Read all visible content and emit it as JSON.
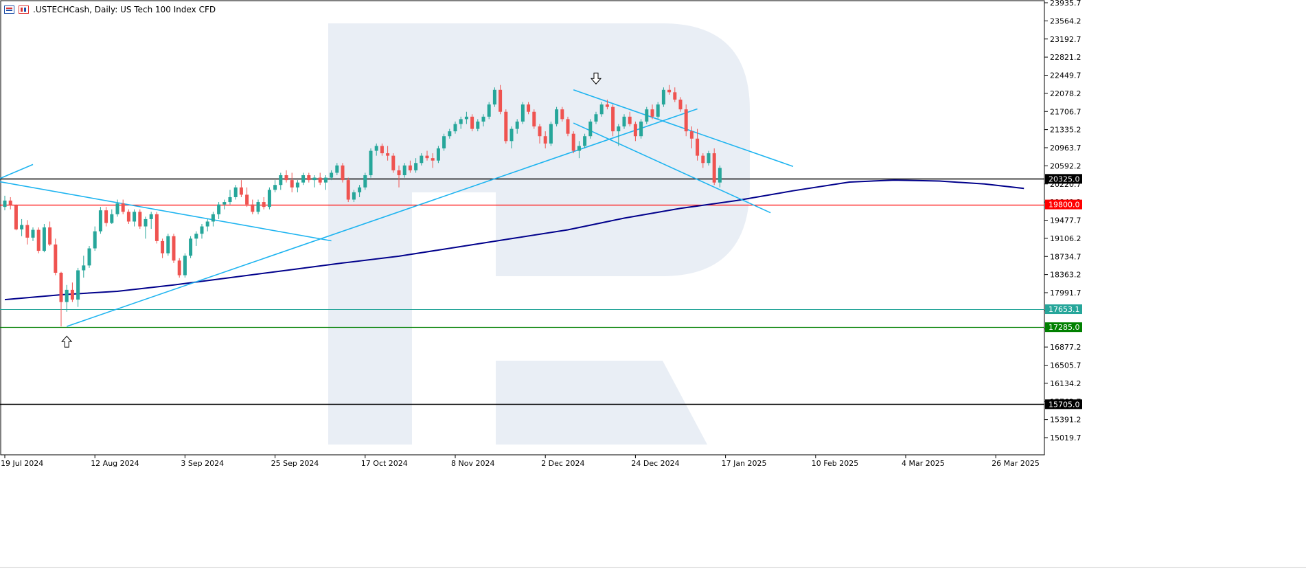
{
  "header": {
    "symbol": ".USTECHCash",
    "timeframe": "Daily",
    "description": "US Tech 100 Index CFD",
    "title": ".USTECHCash, Daily:  US Tech 100 Index CFD"
  },
  "colors": {
    "background": "#ffffff",
    "bull": "#26a69a",
    "bear": "#ef5350",
    "ma": "#00008b",
    "trendline": "#1eb4f0",
    "resistance_black": "#000000",
    "red_level": "#ff0000",
    "green_level": "#008000",
    "current_price": "#26a69a",
    "watermark": "#e9eef5"
  },
  "chart_data": {
    "type": "candlestick",
    "title": ".USTECHCash, Daily:  US Tech 100 Index CFD",
    "xlabel": "",
    "ylabel": "",
    "ylim": [
      14750,
      23950
    ],
    "y_ticks": [
      "23935.7",
      "23564.2",
      "23192.7",
      "22821.2",
      "22449.7",
      "22078.2",
      "21706.7",
      "21335.2",
      "20963.7",
      "20592.2",
      "20220.7",
      "19849.2",
      "19477.7",
      "19106.2",
      "18734.7",
      "18363.2",
      "17991.7",
      "17620.2",
      "17248.7",
      "16877.2",
      "16505.7",
      "16134.2",
      "15762.7",
      "15391.2",
      "15019.7"
    ],
    "x_ticks": [
      "19 Jul 2024",
      "12 Aug 2024",
      "3 Sep 2024",
      "25 Sep 2024",
      "17 Oct 2024",
      "8 Nov 2024",
      "2 Dec 2024",
      "24 Dec 2024",
      "17 Jan 2025",
      "10 Feb 2025",
      "4 Mar 2025",
      "26 Mar 2025"
    ],
    "x_tick_index": [
      0,
      16,
      32,
      48,
      64,
      80,
      96,
      112,
      128,
      144,
      160,
      176
    ],
    "levels": [
      {
        "value": 20325.0,
        "label": "20325.0",
        "color": "#000000",
        "kind": "black"
      },
      {
        "value": 19800.0,
        "label": "19800.0",
        "color": "#ff0000",
        "kind": "red"
      },
      {
        "value": 17653.1,
        "label": "17653.1",
        "color": "#26a69a",
        "kind": "current"
      },
      {
        "value": 17285.0,
        "label": "17285.0",
        "color": "#008000",
        "kind": "green"
      },
      {
        "value": 15705.0,
        "label": "15705.0",
        "color": "#000000",
        "kind": "black"
      }
    ],
    "moving_average": [
      [
        0,
        17850
      ],
      [
        10,
        17950
      ],
      [
        20,
        18020
      ],
      [
        30,
        18150
      ],
      [
        40,
        18300
      ],
      [
        50,
        18450
      ],
      [
        60,
        18600
      ],
      [
        70,
        18740
      ],
      [
        80,
        18920
      ],
      [
        90,
        19100
      ],
      [
        100,
        19280
      ],
      [
        110,
        19520
      ],
      [
        120,
        19720
      ],
      [
        130,
        19880
      ],
      [
        140,
        20080
      ],
      [
        150,
        20260
      ],
      [
        158,
        20300
      ],
      [
        166,
        20280
      ],
      [
        174,
        20220
      ],
      [
        181,
        20130
      ]
    ],
    "trendlines": [
      {
        "p1": [
          -4,
          20330
        ],
        "p2": [
          58,
          19055
        ]
      },
      {
        "p1": [
          -4,
          20180
        ],
        "p2": [
          5,
          20620
        ]
      },
      {
        "p1": [
          11,
          17300
        ],
        "p2": [
          123,
          21760
        ]
      },
      {
        "p1": [
          101,
          22150
        ],
        "p2": [
          140,
          20580
        ]
      },
      {
        "p1": [
          101,
          21470
        ],
        "p2": [
          136,
          19630
        ]
      }
    ],
    "arrows": [
      {
        "index": 11,
        "value": 17100,
        "direction": "up"
      },
      {
        "index": 105,
        "value": 22270,
        "direction": "down"
      }
    ],
    "candles": [
      [
        0,
        19750,
        19980,
        19680,
        19880
      ],
      [
        1,
        19880,
        19950,
        19700,
        19790
      ],
      [
        2,
        19790,
        19800,
        19270,
        19290
      ],
      [
        3,
        19290,
        19500,
        19150,
        19380
      ],
      [
        4,
        19380,
        19480,
        18980,
        19120
      ],
      [
        5,
        19120,
        19330,
        19050,
        19280
      ],
      [
        6,
        19280,
        19330,
        18800,
        18850
      ],
      [
        7,
        18850,
        19400,
        18820,
        19330
      ],
      [
        8,
        19330,
        19450,
        18950,
        18980
      ],
      [
        9,
        18980,
        19100,
        18350,
        18400
      ],
      [
        10,
        18400,
        18420,
        17300,
        17800
      ],
      [
        11,
        17800,
        18150,
        17600,
        18050
      ],
      [
        12,
        18050,
        18200,
        17800,
        17850
      ],
      [
        13,
        17850,
        18500,
        17700,
        18450
      ],
      [
        14,
        18450,
        18750,
        18300,
        18550
      ],
      [
        15,
        18550,
        18950,
        18500,
        18900
      ],
      [
        16,
        18900,
        19350,
        18850,
        19250
      ],
      [
        17,
        19250,
        19750,
        19200,
        19680
      ],
      [
        18,
        19680,
        19750,
        19350,
        19420
      ],
      [
        19,
        19420,
        19700,
        19400,
        19600
      ],
      [
        20,
        19600,
        19900,
        19550,
        19820
      ],
      [
        21,
        19820,
        19900,
        19600,
        19650
      ],
      [
        22,
        19650,
        19700,
        19400,
        19450
      ],
      [
        23,
        19450,
        19700,
        19350,
        19650
      ],
      [
        24,
        19650,
        19700,
        19300,
        19350
      ],
      [
        25,
        19350,
        19550,
        19100,
        19500
      ],
      [
        26,
        19500,
        19650,
        19300,
        19600
      ],
      [
        27,
        19600,
        19650,
        19000,
        19050
      ],
      [
        28,
        19050,
        19100,
        18700,
        18800
      ],
      [
        29,
        18800,
        19200,
        18750,
        19150
      ],
      [
        30,
        19150,
        19200,
        18600,
        18650
      ],
      [
        31,
        18650,
        18700,
        18300,
        18350
      ],
      [
        32,
        18350,
        18800,
        18300,
        18750
      ],
      [
        33,
        18750,
        19150,
        18700,
        19100
      ],
      [
        34,
        19100,
        19250,
        18950,
        19200
      ],
      [
        35,
        19200,
        19400,
        19100,
        19350
      ],
      [
        36,
        19350,
        19500,
        19250,
        19450
      ],
      [
        37,
        19450,
        19650,
        19350,
        19600
      ],
      [
        38,
        19600,
        19850,
        19500,
        19800
      ],
      [
        39,
        19800,
        19900,
        19700,
        19850
      ],
      [
        40,
        19850,
        20100,
        19800,
        19950
      ],
      [
        41,
        19950,
        20200,
        19900,
        20150
      ],
      [
        42,
        20150,
        20300,
        19950,
        20000
      ],
      [
        43,
        20000,
        20150,
        19750,
        19800
      ],
      [
        44,
        19800,
        19900,
        19600,
        19650
      ],
      [
        45,
        19650,
        19900,
        19600,
        19850
      ],
      [
        46,
        19850,
        19950,
        19700,
        19750
      ],
      [
        47,
        19750,
        20150,
        19700,
        20100
      ],
      [
        48,
        20100,
        20300,
        20050,
        20200
      ],
      [
        49,
        20200,
        20450,
        20100,
        20400
      ],
      [
        50,
        20400,
        20500,
        20250,
        20300
      ],
      [
        51,
        20300,
        20450,
        20050,
        20150
      ],
      [
        52,
        20150,
        20300,
        20050,
        20250
      ],
      [
        53,
        20250,
        20450,
        20200,
        20400
      ],
      [
        54,
        20400,
        20450,
        20250,
        20300
      ],
      [
        55,
        20300,
        20400,
        20150,
        20350
      ],
      [
        56,
        20350,
        20450,
        20200,
        20250
      ],
      [
        57,
        20250,
        20400,
        20100,
        20350
      ],
      [
        58,
        20350,
        20500,
        20300,
        20450
      ],
      [
        59,
        20450,
        20650,
        20400,
        20600
      ],
      [
        60,
        20600,
        20650,
        20250,
        20300
      ],
      [
        61,
        20300,
        20350,
        19850,
        19900
      ],
      [
        62,
        19900,
        20100,
        19850,
        20050
      ],
      [
        63,
        20050,
        20200,
        19950,
        20150
      ],
      [
        64,
        20150,
        20450,
        20100,
        20400
      ],
      [
        65,
        20400,
        20950,
        20350,
        20900
      ],
      [
        66,
        20900,
        21050,
        20800,
        21000
      ],
      [
        67,
        21000,
        21050,
        20800,
        20850
      ],
      [
        68,
        20850,
        21000,
        20700,
        20800
      ],
      [
        69,
        20800,
        20850,
        20450,
        20500
      ],
      [
        70,
        20500,
        20600,
        20150,
        20400
      ],
      [
        71,
        20400,
        20650,
        20350,
        20600
      ],
      [
        72,
        20600,
        20700,
        20450,
        20500
      ],
      [
        73,
        20500,
        20750,
        20450,
        20650
      ],
      [
        74,
        20650,
        20850,
        20600,
        20800
      ],
      [
        75,
        20800,
        20900,
        20700,
        20750
      ],
      [
        76,
        20750,
        20850,
        20550,
        20700
      ],
      [
        77,
        20700,
        21000,
        20650,
        20950
      ],
      [
        78,
        20950,
        21250,
        20900,
        21200
      ],
      [
        79,
        21200,
        21350,
        21150,
        21300
      ],
      [
        80,
        21300,
        21500,
        21250,
        21450
      ],
      [
        81,
        21450,
        21600,
        21350,
        21550
      ],
      [
        82,
        21550,
        21700,
        21450,
        21600
      ],
      [
        83,
        21600,
        21650,
        21300,
        21350
      ],
      [
        84,
        21350,
        21550,
        21300,
        21500
      ],
      [
        85,
        21500,
        21650,
        21400,
        21600
      ],
      [
        86,
        21600,
        21900,
        21550,
        21850
      ],
      [
        87,
        21850,
        22200,
        21800,
        22150
      ],
      [
        88,
        22150,
        22250,
        21650,
        21700
      ],
      [
        89,
        21700,
        21750,
        21050,
        21100
      ],
      [
        90,
        21100,
        21400,
        20950,
        21350
      ],
      [
        91,
        21350,
        21550,
        21250,
        21500
      ],
      [
        92,
        21500,
        21900,
        21450,
        21850
      ],
      [
        93,
        21850,
        21900,
        21650,
        21700
      ],
      [
        94,
        21700,
        21750,
        21350,
        21400
      ],
      [
        95,
        21400,
        21450,
        21050,
        21200
      ],
      [
        96,
        21200,
        21300,
        20950,
        21050
      ],
      [
        97,
        21050,
        21500,
        21000,
        21450
      ],
      [
        98,
        21450,
        21800,
        21400,
        21750
      ],
      [
        99,
        21750,
        21800,
        21500,
        21550
      ],
      [
        100,
        21550,
        21600,
        21200,
        21250
      ],
      [
        101,
        21250,
        21300,
        20850,
        20900
      ],
      [
        102,
        20900,
        21100,
        20750,
        21000
      ],
      [
        103,
        21000,
        21250,
        20950,
        21200
      ],
      [
        104,
        21200,
        21550,
        21150,
        21500
      ],
      [
        105,
        21500,
        21700,
        21450,
        21650
      ],
      [
        106,
        21650,
        21900,
        21600,
        21850
      ],
      [
        107,
        21850,
        21950,
        21750,
        21800
      ],
      [
        108,
        21800,
        21850,
        21200,
        21300
      ],
      [
        109,
        21300,
        21450,
        21000,
        21400
      ],
      [
        110,
        21400,
        21650,
        21350,
        21600
      ],
      [
        111,
        21600,
        21700,
        21400,
        21450
      ],
      [
        112,
        21450,
        21500,
        21100,
        21200
      ],
      [
        113,
        21200,
        21550,
        21150,
        21500
      ],
      [
        114,
        21500,
        21800,
        21450,
        21750
      ],
      [
        115,
        21750,
        21850,
        21550,
        21600
      ],
      [
        116,
        21600,
        21900,
        21550,
        21850
      ],
      [
        117,
        21850,
        22200,
        21800,
        22150
      ],
      [
        118,
        22150,
        22250,
        22050,
        22100
      ],
      [
        119,
        22100,
        22200,
        21900,
        21950
      ],
      [
        120,
        21950,
        22000,
        21700,
        21750
      ],
      [
        121,
        21750,
        21850,
        21200,
        21300
      ],
      [
        122,
        21300,
        21400,
        20950,
        21150
      ],
      [
        123,
        21150,
        21350,
        20700,
        20800
      ],
      [
        124,
        20800,
        20850,
        20550,
        20650
      ],
      [
        125,
        20650,
        20900,
        20600,
        20850
      ],
      [
        126,
        20850,
        20950,
        20200,
        20250
      ],
      [
        127,
        20250,
        20600,
        20150,
        20550
      ]
    ]
  }
}
